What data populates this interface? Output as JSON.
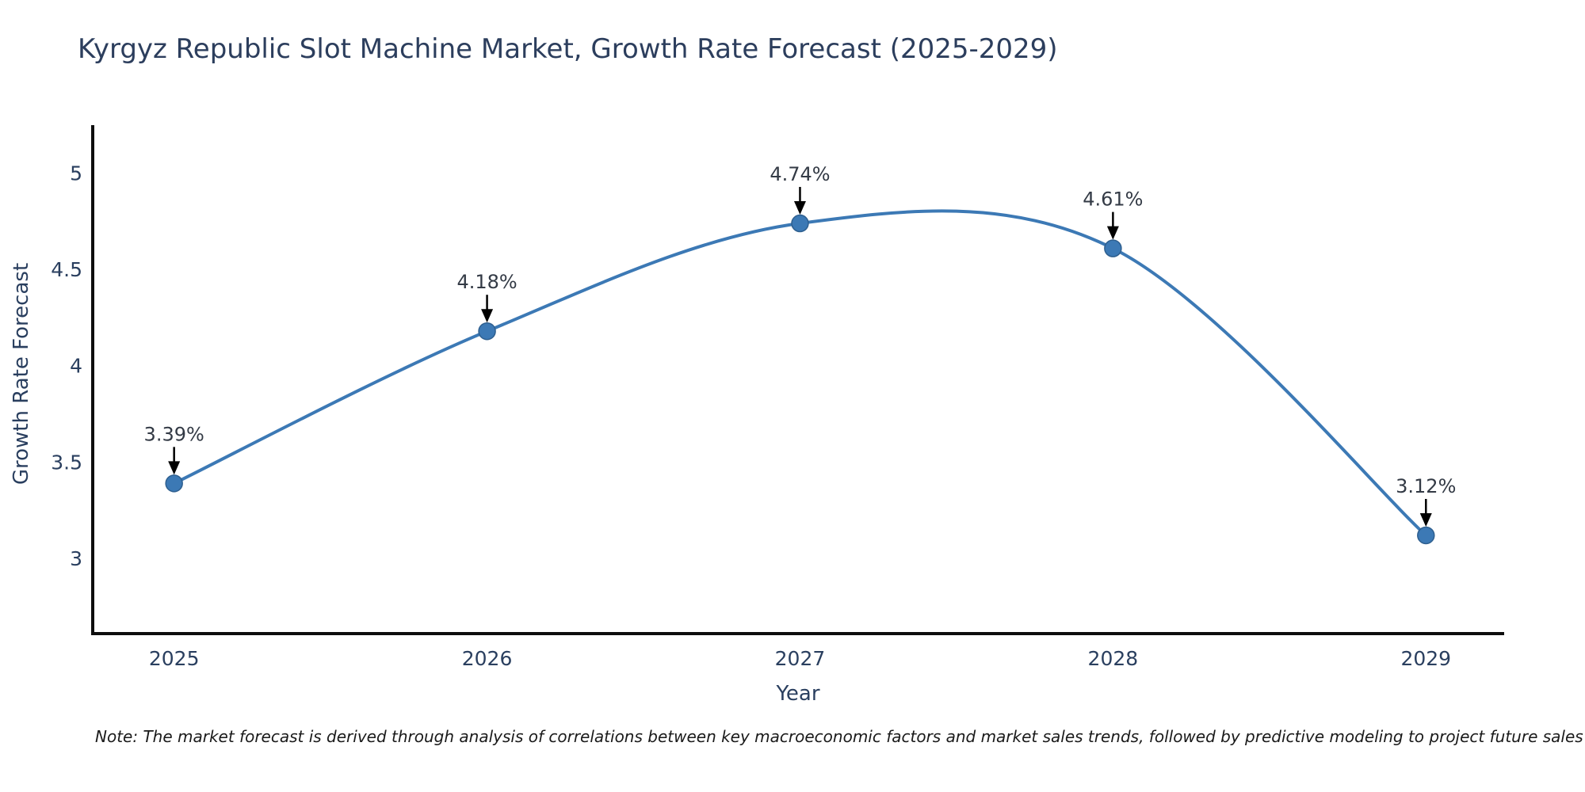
{
  "chart_data": {
    "type": "line",
    "title": "Kyrgyz Republic Slot Machine Market, Growth Rate Forecast (2025-2029)",
    "xlabel": "Year",
    "ylabel": "Growth Rate Forecast",
    "x": [
      2025,
      2026,
      2027,
      2028,
      2029
    ],
    "values": [
      3.39,
      4.18,
      4.74,
      4.61,
      3.12
    ],
    "point_labels": [
      "3.39%",
      "4.18%",
      "4.74%",
      "4.61%",
      "3.12%"
    ],
    "xtick_labels": [
      "2025",
      "2026",
      "2027",
      "2028",
      "2029"
    ],
    "ytick_values": [
      3,
      3.5,
      4,
      4.5,
      5
    ],
    "ytick_labels": [
      "3",
      "3.5",
      "4",
      "4.5",
      "5"
    ],
    "xlim": [
      2024.74,
      2029.25
    ],
    "ylim": [
      2.61,
      5.25
    ],
    "grid": false,
    "legend": "none",
    "smooth_spline": true,
    "line_color": "#3c79b5",
    "marker_color": "#3c79b5",
    "marker_edge_color": "#2e5f8f",
    "axis_color": "#0d0d0d",
    "tick_label_color": "#2a3f5f",
    "annotation_text_color": "#333a45",
    "annotation_arrow_color": "#000000",
    "note": "Note: The market forecast is derived through analysis of correlations between key macroeconomic factors and market sales trends, followed by predictive modeling to project future sales"
  }
}
